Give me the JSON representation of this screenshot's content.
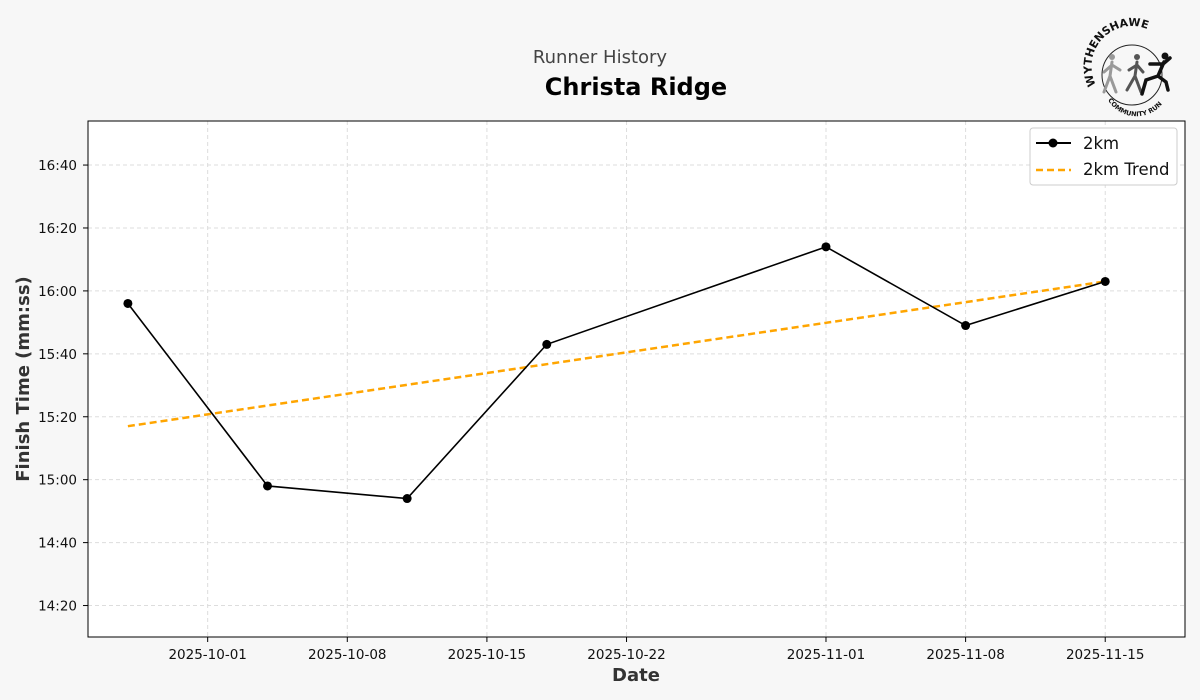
{
  "header": {
    "subtitle": "Runner History",
    "title": "Christa Ridge"
  },
  "logo": {
    "top_text": "WYTHENSHAWE",
    "bottom_text": "COMMUNITY RUN",
    "icon": "runners-logo-icon"
  },
  "colors": {
    "background": "#f7f7f7",
    "series_line": "#000000",
    "trend_line": "#FFA500",
    "grid": "#dddddd"
  },
  "chart_data": {
    "type": "line",
    "xlabel": "Date",
    "ylabel": "Finish Time (mm:ss)",
    "x_ticks": [
      "2025-10-01",
      "2025-10-08",
      "2025-10-15",
      "2025-10-22",
      "2025-11-01",
      "2025-11-08",
      "2025-11-15"
    ],
    "y_ticks": [
      "14:20",
      "14:40",
      "15:00",
      "15:20",
      "15:40",
      "16:00",
      "16:20",
      "16:40"
    ],
    "xlim": [
      "2025-09-25",
      "2025-11-19"
    ],
    "ylim": [
      "14:10",
      "16:54"
    ],
    "grid": true,
    "legend_position": "top-right",
    "series": [
      {
        "name": "2km",
        "style": "solid-with-markers",
        "x": [
          "2025-09-27",
          "2025-10-04",
          "2025-10-11",
          "2025-10-18",
          "2025-11-01",
          "2025-11-08",
          "2025-11-15"
        ],
        "y": [
          "15:56",
          "14:58",
          "14:54",
          "15:43",
          "16:14",
          "15:49",
          "16:03"
        ]
      },
      {
        "name": "2km Trend",
        "style": "dashed",
        "x": [
          "2025-09-27",
          "2025-11-15"
        ],
        "y": [
          "15:17",
          "16:03"
        ]
      }
    ]
  }
}
